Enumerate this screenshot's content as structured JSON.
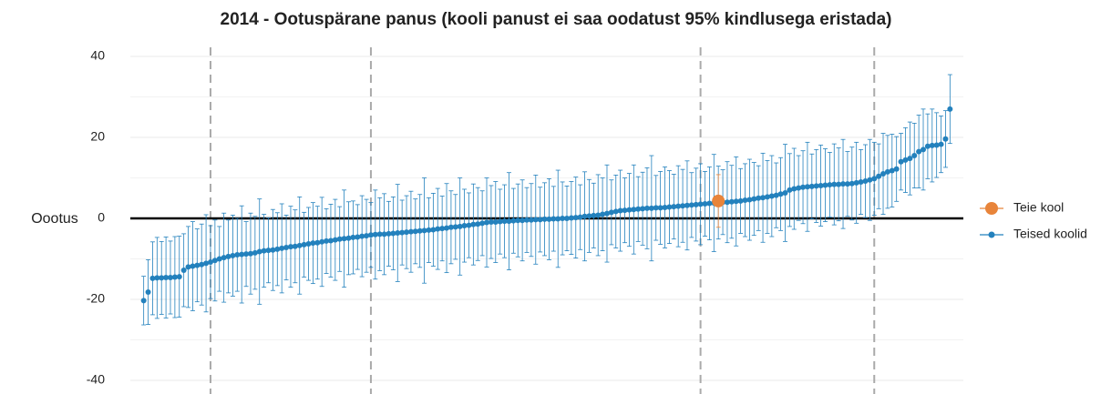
{
  "chart_data": {
    "type": "errorbar",
    "title": "2014 - Ootuspärane panus (kooli panust ei saa oodatust 95% kindlusega eristada)",
    "ylabel": "Oootus",
    "ylim": [
      -40,
      40
    ],
    "yticks": [
      40,
      20,
      0,
      -20,
      -40
    ],
    "yminor": [
      30,
      10,
      -10,
      -30
    ],
    "grid": true,
    "xlim": [
      -2,
      185
    ],
    "vlines": [
      16,
      52,
      126,
      165
    ],
    "legend": "right",
    "series": [
      {
        "name": "Teie kool",
        "color": "#e8843a",
        "x": [
          130
        ],
        "values": [
          4.3
        ],
        "errors": [
          6.5
        ]
      },
      {
        "name": "Teised koolid",
        "color": "#2381bd",
        "x": [
          1,
          2,
          3,
          4,
          5,
          6,
          7,
          8,
          9,
          10,
          11,
          12,
          13,
          14,
          15,
          16,
          17,
          18,
          19,
          20,
          21,
          22,
          23,
          24,
          25,
          26,
          27,
          28,
          29,
          30,
          31,
          32,
          33,
          34,
          35,
          36,
          37,
          38,
          39,
          40,
          41,
          42,
          43,
          44,
          45,
          46,
          47,
          48,
          49,
          50,
          51,
          52,
          53,
          54,
          55,
          56,
          57,
          58,
          59,
          60,
          61,
          62,
          63,
          64,
          65,
          66,
          67,
          68,
          69,
          70,
          71,
          72,
          73,
          74,
          75,
          76,
          77,
          78,
          79,
          80,
          81,
          82,
          83,
          84,
          85,
          86,
          87,
          88,
          89,
          90,
          91,
          92,
          93,
          94,
          95,
          96,
          97,
          98,
          99,
          100,
          101,
          102,
          103,
          104,
          105,
          106,
          107,
          108,
          109,
          110,
          111,
          112,
          113,
          114,
          115,
          116,
          117,
          118,
          119,
          120,
          121,
          122,
          123,
          124,
          125,
          126,
          127,
          128,
          129,
          130,
          131,
          132,
          133,
          134,
          135,
          136,
          137,
          138,
          139,
          140,
          141,
          142,
          143,
          144,
          145,
          146,
          147,
          148,
          149,
          150,
          151,
          152,
          153,
          154,
          155,
          156,
          157,
          158,
          159,
          160,
          161,
          162,
          163,
          164,
          165,
          166,
          167,
          168,
          169,
          170,
          171,
          172,
          173,
          174,
          175,
          176,
          177,
          178,
          179,
          180,
          181,
          182
        ],
        "values": [
          -20.3,
          -18.2,
          -14.8,
          -14.7,
          -14.7,
          -14.6,
          -14.6,
          -14.5,
          -14.4,
          -12.8,
          -12.0,
          -11.8,
          -11.6,
          -11.4,
          -11.1,
          -10.8,
          -10.4,
          -10.0,
          -9.7,
          -9.4,
          -9.2,
          -9.0,
          -8.9,
          -8.8,
          -8.7,
          -8.5,
          -8.2,
          -8.0,
          -7.9,
          -7.8,
          -7.6,
          -7.4,
          -7.2,
          -7.0,
          -6.9,
          -6.7,
          -6.5,
          -6.3,
          -6.1,
          -6.0,
          -5.8,
          -5.6,
          -5.5,
          -5.3,
          -5.1,
          -5.0,
          -4.9,
          -4.7,
          -4.6,
          -4.4,
          -4.3,
          -4.1,
          -4.0,
          -3.9,
          -3.9,
          -3.8,
          -3.7,
          -3.6,
          -3.5,
          -3.4,
          -3.3,
          -3.2,
          -3.1,
          -3.0,
          -2.9,
          -2.8,
          -2.6,
          -2.5,
          -2.4,
          -2.2,
          -2.1,
          -2.0,
          -1.8,
          -1.7,
          -1.5,
          -1.4,
          -1.2,
          -1.0,
          -0.9,
          -0.9,
          -0.8,
          -0.7,
          -0.7,
          -0.6,
          -0.5,
          -0.5,
          -0.4,
          -0.4,
          -0.3,
          -0.3,
          -0.2,
          -0.2,
          -0.1,
          -0.1,
          0.0,
          0.0,
          0.1,
          0.2,
          0.3,
          0.5,
          0.6,
          0.7,
          0.8,
          1.0,
          1.2,
          1.5,
          1.7,
          1.9,
          2.0,
          2.1,
          2.2,
          2.3,
          2.4,
          2.5,
          2.5,
          2.6,
          2.6,
          2.7,
          2.8,
          2.9,
          3.0,
          3.1,
          3.2,
          3.3,
          3.4,
          3.5,
          3.6,
          3.7,
          3.8,
          3.9,
          4.0,
          4.0,
          4.1,
          4.2,
          4.3,
          4.5,
          4.6,
          4.8,
          5.0,
          5.1,
          5.3,
          5.5,
          5.7,
          6.0,
          6.3,
          7.0,
          7.3,
          7.5,
          7.7,
          7.8,
          7.9,
          8.0,
          8.1,
          8.2,
          8.3,
          8.4,
          8.4,
          8.5,
          8.5,
          8.6,
          8.8,
          9.0,
          9.2,
          9.5,
          9.8,
          10.4,
          11.0,
          11.5,
          11.8,
          12.2,
          14.0,
          14.4,
          14.8,
          15.5,
          16.5,
          17.0,
          17.8,
          18.0,
          18.1,
          18.3,
          19.6,
          27.0
        ],
        "errors": [
          6,
          8,
          9,
          10,
          9,
          10,
          9,
          10,
          10,
          9,
          10,
          11,
          9,
          10,
          12,
          9,
          10,
          8,
          11,
          9,
          10,
          9,
          12,
          8,
          10,
          9,
          13,
          9,
          8,
          10,
          9,
          11,
          8,
          10,
          9,
          12,
          8,
          9,
          10,
          9,
          11,
          8,
          9,
          10,
          8,
          12,
          9,
          9,
          8,
          10,
          9,
          8,
          11,
          9,
          10,
          8,
          9,
          12,
          8,
          9,
          10,
          8,
          9,
          13,
          8,
          9,
          10,
          8,
          11,
          9,
          8,
          12,
          9,
          8,
          10,
          9,
          8,
          11,
          9,
          10,
          8,
          9,
          12,
          8,
          9,
          10,
          8,
          9,
          11,
          8,
          9,
          10,
          8,
          12,
          9,
          8,
          9,
          10,
          8,
          11,
          9,
          8,
          10,
          9,
          12,
          8,
          9,
          10,
          8,
          9,
          11,
          8,
          9,
          10,
          13,
          8,
          9,
          10,
          9,
          8,
          10,
          9,
          11,
          8,
          9,
          10,
          8,
          9,
          12,
          9,
          8,
          10,
          9,
          11,
          8,
          9,
          10,
          9,
          8,
          11,
          9,
          10,
          8,
          9,
          12,
          9,
          10,
          8,
          9,
          11,
          8,
          9,
          10,
          9,
          8,
          10,
          9,
          11,
          8,
          9,
          10,
          8,
          9,
          10,
          9,
          8,
          10,
          9,
          9,
          8,
          7,
          8,
          9,
          8,
          9,
          10,
          8,
          9,
          8,
          7,
          7,
          8.5
        ]
      }
    ]
  }
}
